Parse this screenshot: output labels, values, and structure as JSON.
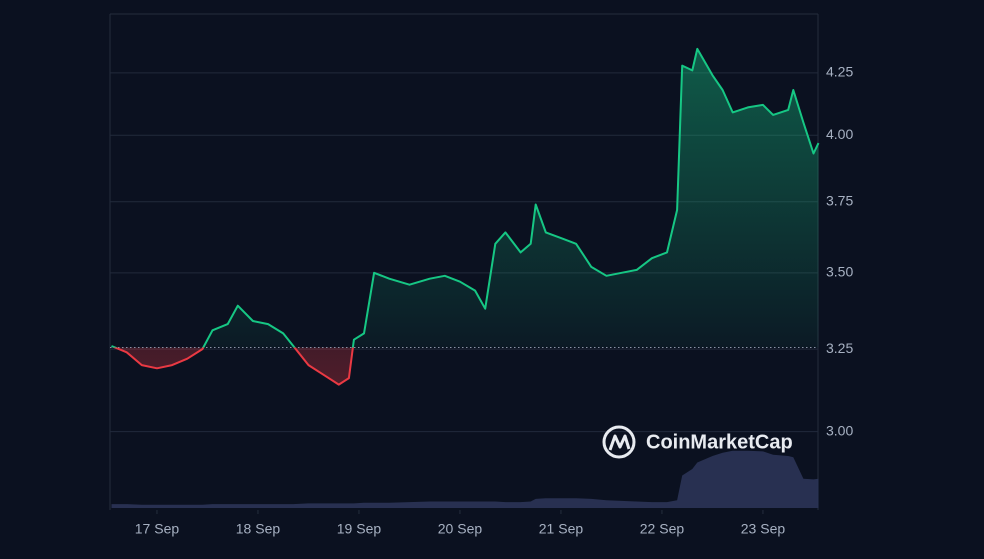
{
  "chart_data": {
    "type": "line",
    "log": true,
    "grid": true,
    "baseline": 3.255,
    "up_color": "#16c784",
    "down_color": "#ea3943",
    "volume_color": "#2b3457",
    "watermark": "CoinMarketCap",
    "x": [
      16.55,
      16.7,
      16.85,
      17.0,
      17.15,
      17.3,
      17.45,
      17.55,
      17.7,
      17.8,
      17.95,
      18.1,
      18.25,
      18.35,
      18.5,
      18.65,
      18.8,
      18.9,
      18.95,
      19.05,
      19.15,
      19.3,
      19.5,
      19.7,
      19.85,
      20.0,
      20.15,
      20.25,
      20.35,
      20.45,
      20.6,
      20.7,
      20.75,
      20.85,
      21.0,
      21.15,
      21.3,
      21.45,
      21.6,
      21.75,
      21.9,
      22.05,
      22.15,
      22.2,
      22.3,
      22.35,
      22.5,
      22.6,
      22.7,
      22.85,
      23.0,
      23.1,
      23.25,
      23.3,
      23.4,
      23.5,
      23.55
    ],
    "series": [
      {
        "name": "Price",
        "values": [
          3.26,
          3.24,
          3.2,
          3.19,
          3.2,
          3.22,
          3.25,
          3.31,
          3.33,
          3.39,
          3.34,
          3.33,
          3.3,
          3.26,
          3.2,
          3.17,
          3.14,
          3.16,
          3.28,
          3.3,
          3.5,
          3.48,
          3.46,
          3.48,
          3.49,
          3.47,
          3.44,
          3.38,
          3.6,
          3.64,
          3.57,
          3.6,
          3.74,
          3.64,
          3.62,
          3.6,
          3.52,
          3.49,
          3.5,
          3.51,
          3.55,
          3.57,
          3.72,
          4.28,
          4.26,
          4.35,
          4.24,
          4.18,
          4.09,
          4.11,
          4.12,
          4.08,
          4.1,
          4.18,
          4.05,
          3.93,
          3.97
        ]
      },
      {
        "name": "Volume",
        "axis": "y2",
        "values": [
          6,
          6,
          5,
          5,
          5,
          5,
          5,
          6,
          6,
          6,
          6,
          6,
          6,
          6,
          7,
          7,
          7,
          7,
          7,
          8,
          8,
          8,
          9,
          10,
          10,
          10,
          10,
          10,
          10,
          9,
          9,
          10,
          14,
          15,
          15,
          15,
          14,
          12,
          11,
          10,
          9,
          9,
          12,
          50,
          60,
          70,
          80,
          85,
          88,
          88,
          87,
          82,
          80,
          78,
          45,
          44,
          45
        ]
      }
    ],
    "xlim": [
      16.535,
      23.545
    ],
    "ylim": [
      2.78,
      4.5
    ],
    "y2lim": [
      0,
      100
    ],
    "xticks": [
      {
        "value": 17,
        "label": "17 Sep"
      },
      {
        "value": 18,
        "label": "18 Sep"
      },
      {
        "value": 19,
        "label": "19 Sep"
      },
      {
        "value": 20,
        "label": "20 Sep"
      },
      {
        "value": 21,
        "label": "21 Sep"
      },
      {
        "value": 22,
        "label": "22 Sep"
      },
      {
        "value": 23,
        "label": "23 Sep"
      }
    ],
    "yticks": [
      {
        "value": 3,
        "label": "3.00"
      },
      {
        "value": 3.25,
        "label": "3.25"
      },
      {
        "value": 3.5,
        "label": "3.50"
      },
      {
        "value": 3.75,
        "label": "3.75"
      },
      {
        "value": 4,
        "label": "4.00"
      },
      {
        "value": 4.25,
        "label": "4.25"
      }
    ]
  }
}
